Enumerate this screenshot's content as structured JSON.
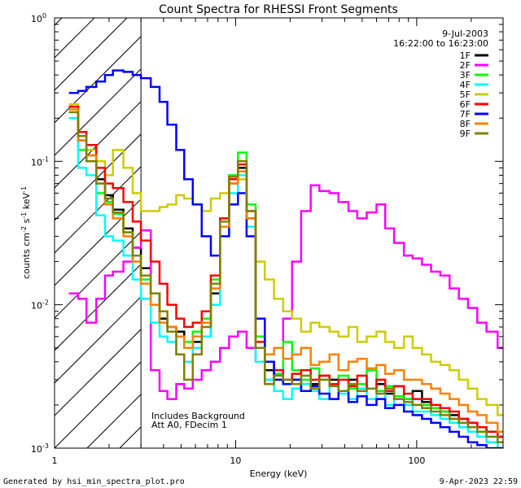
{
  "chart_data": {
    "type": "line",
    "title": "Count Spectra for RHESSI Front Segments",
    "xlabel": "Energy (keV)",
    "ylabel": "counts cm",
    "ylabel_parts": {
      "base": "counts cm",
      "sup1": "-2",
      "mid": " s",
      "sup2": "-1",
      "unit": " keV",
      "sup3": "-1"
    },
    "xscale": "log",
    "yscale": "log",
    "xlim": [
      1,
      300
    ],
    "ylim": [
      0.001,
      1
    ],
    "x_ticks": [
      {
        "v": 1,
        "label": "1"
      },
      {
        "v": 10,
        "label": "10"
      },
      {
        "v": 100,
        "label": "100"
      }
    ],
    "y_ticks": [
      {
        "v": 0.001,
        "base": "10",
        "exp": "-3"
      },
      {
        "v": 0.01,
        "base": "10",
        "exp": "-2"
      },
      {
        "v": 0.1,
        "base": "10",
        "exp": "-1"
      },
      {
        "v": 1,
        "base": "10",
        "exp": "0"
      }
    ],
    "date": "9-Jul-2003",
    "time_range": "16:22:00 to 16:23:00",
    "annotation": [
      "Includes Background",
      "Att A0, FDecim 1"
    ],
    "shaded_region": [
      1,
      3
    ],
    "footer_left": "Generated by hsi_min_spectra_plot.pro",
    "footer_right": "9-Apr-2023 22:59",
    "series": [
      {
        "name": "1F",
        "color": "#000000",
        "x": [
          1.2,
          1.35,
          1.5,
          1.7,
          1.9,
          2.1,
          2.4,
          2.7,
          3.0,
          3.4,
          3.8,
          4.2,
          4.7,
          5.2,
          5.8,
          6.5,
          7.3,
          8.2,
          9.2,
          10.3,
          11.5,
          12.9,
          14.5,
          16.3,
          18.3,
          20.5,
          23,
          26,
          29,
          33,
          37,
          42,
          47,
          53,
          60,
          67,
          75,
          85,
          95,
          107,
          120,
          135,
          152,
          171,
          192,
          216,
          243,
          280
        ],
        "y": [
          0.24,
          0.14,
          0.11,
          0.075,
          0.058,
          0.046,
          0.034,
          0.025,
          0.018,
          0.012,
          0.008,
          0.007,
          0.0065,
          0.005,
          0.0055,
          0.006,
          0.012,
          0.035,
          0.07,
          0.09,
          0.04,
          0.006,
          0.0035,
          0.003,
          0.0028,
          0.003,
          0.0025,
          0.0028,
          0.0032,
          0.003,
          0.0025,
          0.003,
          0.0028,
          0.0026,
          0.0028,
          0.0024,
          0.0027,
          0.0022,
          0.0025,
          0.0021,
          0.0019,
          0.0018,
          0.0017,
          0.0016,
          0.0015,
          0.0014,
          0.0013,
          0.0012
        ]
      },
      {
        "name": "2F",
        "color": "#ff00ff",
        "x": [
          1.2,
          1.35,
          1.5,
          1.7,
          1.9,
          2.1,
          2.4,
          2.7,
          3.0,
          3.4,
          3.8,
          4.2,
          4.7,
          5.2,
          5.8,
          6.5,
          7.3,
          8.2,
          9.2,
          10.3,
          11.5,
          12.9,
          14.5,
          16.3,
          18.3,
          20.5,
          23,
          26,
          29,
          33,
          37,
          42,
          47,
          53,
          60,
          67,
          75,
          85,
          95,
          107,
          120,
          135,
          152,
          171,
          192,
          216,
          243,
          280
        ],
        "y": [
          0.012,
          0.011,
          0.0075,
          0.011,
          0.016,
          0.017,
          0.02,
          0.025,
          0.033,
          0.0035,
          0.0025,
          0.0022,
          0.0028,
          0.0026,
          0.003,
          0.0035,
          0.004,
          0.005,
          0.006,
          0.0065,
          0.005,
          0.004,
          0.003,
          0.0035,
          0.008,
          0.02,
          0.045,
          0.068,
          0.062,
          0.06,
          0.052,
          0.045,
          0.04,
          0.044,
          0.05,
          0.034,
          0.027,
          0.022,
          0.021,
          0.019,
          0.017,
          0.016,
          0.013,
          0.011,
          0.0095,
          0.0075,
          0.0065,
          0.005
        ]
      },
      {
        "name": "3F",
        "color": "#00ff00",
        "x": [
          1.2,
          1.35,
          1.5,
          1.7,
          1.9,
          2.1,
          2.4,
          2.7,
          3.0,
          3.4,
          3.8,
          4.2,
          4.7,
          5.2,
          5.8,
          6.5,
          7.3,
          8.2,
          9.2,
          10.3,
          11.5,
          12.9,
          14.5,
          16.3,
          18.3,
          20.5,
          23,
          26,
          29,
          33,
          37,
          42,
          47,
          53,
          60,
          67,
          75,
          85,
          95,
          107,
          120,
          135,
          152,
          171,
          192,
          216,
          243,
          280
        ],
        "y": [
          0.23,
          0.12,
          0.1,
          0.06,
          0.052,
          0.043,
          0.032,
          0.022,
          0.015,
          0.01,
          0.0075,
          0.0065,
          0.006,
          0.0055,
          0.0065,
          0.008,
          0.015,
          0.04,
          0.08,
          0.115,
          0.05,
          0.006,
          0.004,
          0.0033,
          0.0055,
          0.0035,
          0.003,
          0.0036,
          0.003,
          0.0028,
          0.0032,
          0.0026,
          0.0028,
          0.0035,
          0.0025,
          0.0027,
          0.0023,
          0.0022,
          0.002,
          0.002,
          0.0019,
          0.0018,
          0.0016,
          0.0015,
          0.0014,
          0.0013,
          0.0012,
          0.0011
        ]
      },
      {
        "name": "4F",
        "color": "#00ffff",
        "x": [
          1.2,
          1.35,
          1.5,
          1.7,
          1.9,
          2.1,
          2.4,
          2.7,
          3.0,
          3.4,
          3.8,
          4.2,
          4.7,
          5.2,
          5.8,
          6.5,
          7.3,
          8.2,
          9.2,
          10.3,
          11.5,
          12.9,
          14.5,
          16.3,
          18.3,
          20.5,
          23,
          26,
          29,
          33,
          37,
          42,
          47,
          53,
          60,
          67,
          75,
          85,
          95,
          107,
          120,
          135,
          152,
          171,
          192,
          216,
          243,
          280
        ],
        "y": [
          0.2,
          0.09,
          0.08,
          0.042,
          0.03,
          0.028,
          0.022,
          0.015,
          0.011,
          0.0075,
          0.006,
          0.0055,
          0.0045,
          0.004,
          0.005,
          0.006,
          0.01,
          0.03,
          0.06,
          0.08,
          0.035,
          0.004,
          0.003,
          0.0025,
          0.0022,
          0.0026,
          0.0028,
          0.0025,
          0.0022,
          0.0028,
          0.0024,
          0.0022,
          0.0026,
          0.0022,
          0.0024,
          0.002,
          0.0022,
          0.002,
          0.0018,
          0.0018,
          0.0017,
          0.0016,
          0.0015,
          0.0014,
          0.0013,
          0.0012,
          0.0011,
          0.001
        ]
      },
      {
        "name": "5F",
        "color": "#cccc00",
        "x": [
          1.2,
          1.35,
          1.5,
          1.7,
          1.9,
          2.1,
          2.4,
          2.7,
          3.0,
          3.4,
          3.8,
          4.2,
          4.7,
          5.2,
          5.8,
          6.5,
          7.3,
          8.2,
          9.2,
          10.3,
          11.5,
          12.9,
          14.5,
          16.3,
          18.3,
          20.5,
          23,
          26,
          29,
          33,
          37,
          42,
          47,
          53,
          60,
          67,
          75,
          85,
          95,
          107,
          120,
          135,
          152,
          171,
          192,
          216,
          243,
          280
        ],
        "y": [
          0.25,
          0.15,
          0.12,
          0.1,
          0.08,
          0.12,
          0.09,
          0.06,
          0.045,
          0.045,
          0.048,
          0.05,
          0.058,
          0.055,
          0.05,
          0.045,
          0.055,
          0.06,
          0.07,
          0.075,
          0.04,
          0.02,
          0.015,
          0.011,
          0.009,
          0.008,
          0.0065,
          0.0075,
          0.007,
          0.0065,
          0.006,
          0.007,
          0.0055,
          0.006,
          0.0065,
          0.0055,
          0.005,
          0.006,
          0.005,
          0.0045,
          0.004,
          0.0038,
          0.0035,
          0.003,
          0.0026,
          0.0022,
          0.002,
          0.0017
        ]
      },
      {
        "name": "6F",
        "color": "#ff0000",
        "x": [
          1.2,
          1.35,
          1.5,
          1.7,
          1.9,
          2.1,
          2.4,
          2.7,
          3.0,
          3.4,
          3.8,
          4.2,
          4.7,
          5.2,
          5.8,
          6.5,
          7.3,
          8.2,
          9.2,
          10.3,
          11.5,
          12.9,
          14.5,
          16.3,
          18.3,
          20.5,
          23,
          26,
          29,
          33,
          37,
          42,
          47,
          53,
          60,
          67,
          75,
          85,
          95,
          107,
          120,
          135,
          152,
          171,
          192,
          216,
          243,
          280
        ],
        "y": [
          0.24,
          0.16,
          0.13,
          0.09,
          0.07,
          0.065,
          0.052,
          0.038,
          0.028,
          0.02,
          0.014,
          0.01,
          0.008,
          0.007,
          0.0075,
          0.009,
          0.016,
          0.04,
          0.075,
          0.095,
          0.045,
          0.0055,
          0.004,
          0.0035,
          0.003,
          0.0033,
          0.0035,
          0.003,
          0.0032,
          0.0028,
          0.003,
          0.0027,
          0.0032,
          0.0026,
          0.003,
          0.0025,
          0.0027,
          0.0024,
          0.0022,
          0.0022,
          0.002,
          0.0019,
          0.0018,
          0.0016,
          0.0015,
          0.0014,
          0.0013,
          0.0012
        ]
      },
      {
        "name": "7F",
        "color": "#0000ff",
        "x": [
          1.2,
          1.35,
          1.5,
          1.7,
          1.9,
          2.1,
          2.4,
          2.7,
          3.0,
          3.4,
          3.8,
          4.2,
          4.7,
          5.2,
          5.8,
          6.5,
          7.3,
          8.2,
          9.2,
          10.3,
          11.5,
          12.9,
          14.5,
          16.3,
          18.3,
          20.5,
          23,
          26,
          29,
          33,
          37,
          42,
          47,
          53,
          60,
          67,
          75,
          85,
          95,
          107,
          120,
          135,
          152,
          171,
          192,
          216,
          243,
          280
        ],
        "y": [
          0.3,
          0.31,
          0.33,
          0.36,
          0.4,
          0.43,
          0.42,
          0.4,
          0.38,
          0.33,
          0.26,
          0.18,
          0.12,
          0.075,
          0.05,
          0.03,
          0.022,
          0.03,
          0.05,
          0.06,
          0.03,
          0.008,
          0.004,
          0.003,
          0.0028,
          0.003,
          0.0025,
          0.0027,
          0.0024,
          0.0022,
          0.0025,
          0.0021,
          0.0023,
          0.002,
          0.0022,
          0.0019,
          0.002,
          0.0018,
          0.0017,
          0.0016,
          0.0015,
          0.0014,
          0.0013,
          0.0012,
          0.0011,
          0.00105,
          0.001,
          0.001
        ]
      },
      {
        "name": "8F",
        "color": "#ff8000",
        "x": [
          1.2,
          1.35,
          1.5,
          1.7,
          1.9,
          2.1,
          2.4,
          2.7,
          3.0,
          3.4,
          3.8,
          4.2,
          4.7,
          5.2,
          5.8,
          6.5,
          7.3,
          8.2,
          9.2,
          10.3,
          11.5,
          12.9,
          14.5,
          16.3,
          18.3,
          20.5,
          23,
          26,
          29,
          33,
          37,
          42,
          47,
          53,
          60,
          67,
          75,
          85,
          95,
          107,
          120,
          135,
          152,
          171,
          192,
          216,
          243,
          280
        ],
        "y": [
          0.23,
          0.14,
          0.11,
          0.07,
          0.05,
          0.04,
          0.03,
          0.02,
          0.014,
          0.01,
          0.0075,
          0.007,
          0.006,
          0.005,
          0.006,
          0.0075,
          0.013,
          0.035,
          0.07,
          0.085,
          0.04,
          0.005,
          0.0045,
          0.005,
          0.0042,
          0.0045,
          0.005,
          0.0038,
          0.004,
          0.0045,
          0.0035,
          0.004,
          0.0042,
          0.0036,
          0.0038,
          0.0033,
          0.0035,
          0.003,
          0.003,
          0.0028,
          0.0026,
          0.0024,
          0.0022,
          0.002,
          0.0018,
          0.0017,
          0.0015,
          0.0013
        ]
      },
      {
        "name": "9F",
        "color": "#808000",
        "x": [
          1.2,
          1.35,
          1.5,
          1.7,
          1.9,
          2.1,
          2.4,
          2.7,
          3.0,
          3.4,
          3.8,
          4.2,
          4.7,
          5.2,
          5.8,
          6.5,
          7.3,
          8.2,
          9.2,
          10.3,
          11.5,
          12.9,
          14.5,
          16.3,
          18.3,
          20.5,
          23,
          26,
          29,
          33,
          37,
          42,
          47,
          53,
          60,
          67,
          75,
          85,
          95,
          107,
          120,
          135,
          152,
          171,
          192,
          216,
          243,
          280
        ],
        "y": [
          0.22,
          0.15,
          0.1,
          0.07,
          0.055,
          0.044,
          0.032,
          0.022,
          0.016,
          0.012,
          0.009,
          0.0065,
          0.0045,
          0.003,
          0.0045,
          0.007,
          0.014,
          0.038,
          0.078,
          0.1,
          0.045,
          0.005,
          0.0028,
          0.0032,
          0.003,
          0.0028,
          0.0032,
          0.0026,
          0.003,
          0.0027,
          0.0025,
          0.0028,
          0.0025,
          0.0026,
          0.0024,
          0.0026,
          0.0022,
          0.0021,
          0.002,
          0.0019,
          0.0018,
          0.0017,
          0.0016,
          0.0015,
          0.0014,
          0.0013,
          0.0012,
          0.0011
        ]
      }
    ]
  }
}
